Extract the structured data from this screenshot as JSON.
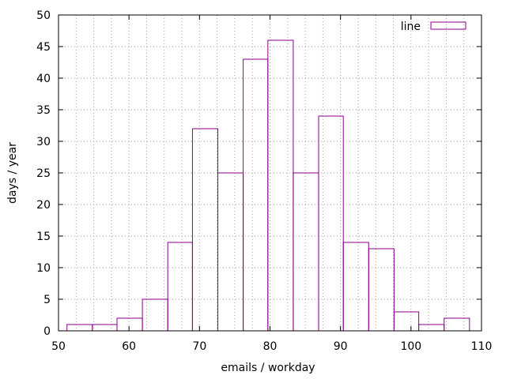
{
  "chart_data": {
    "type": "bar",
    "style": "histogram-steps",
    "xlabel": "emails / workday",
    "ylabel": "days / year",
    "xlim": [
      50,
      110
    ],
    "ylim": [
      0,
      50
    ],
    "xticks": [
      50,
      60,
      70,
      80,
      90,
      100,
      110
    ],
    "yticks": [
      0,
      5,
      10,
      15,
      20,
      25,
      30,
      35,
      40,
      45,
      50
    ],
    "grid": true,
    "legend_position": "top-right",
    "series": [
      {
        "name": "line",
        "color": "#8b008b",
        "bins": [
          {
            "x0": 51.2,
            "x1": 54.8,
            "value": 1
          },
          {
            "x0": 54.8,
            "x1": 58.3,
            "value": 1
          },
          {
            "x0": 58.3,
            "x1": 61.9,
            "value": 2
          },
          {
            "x0": 61.9,
            "x1": 65.5,
            "value": 5
          },
          {
            "x0": 65.5,
            "x1": 69.0,
            "value": 14
          },
          {
            "x0": 69.0,
            "x1": 72.6,
            "value": 32
          },
          {
            "x0": 72.6,
            "x1": 76.2,
            "value": 25
          },
          {
            "x0": 76.2,
            "x1": 79.7,
            "value": 43
          },
          {
            "x0": 79.7,
            "x1": 83.3,
            "value": 46
          },
          {
            "x0": 83.3,
            "x1": 86.9,
            "value": 25
          },
          {
            "x0": 86.9,
            "x1": 90.4,
            "value": 34
          },
          {
            "x0": 90.4,
            "x1": 94.0,
            "value": 14
          },
          {
            "x0": 94.0,
            "x1": 97.6,
            "value": 13
          },
          {
            "x0": 97.6,
            "x1": 101.1,
            "value": 3
          },
          {
            "x0": 101.1,
            "x1": 104.7,
            "value": 1
          },
          {
            "x0": 104.7,
            "x1": 108.3,
            "value": 2
          }
        ]
      }
    ]
  }
}
